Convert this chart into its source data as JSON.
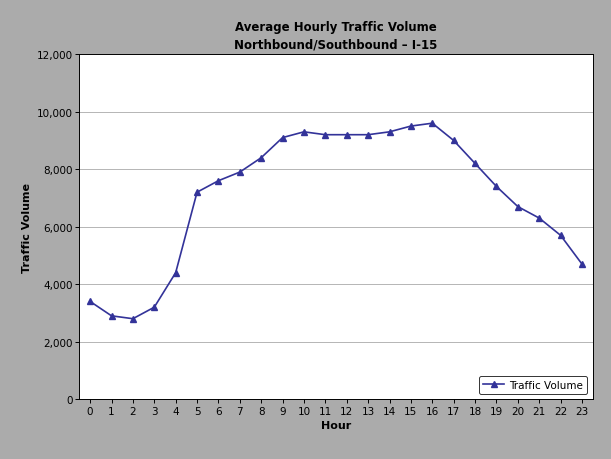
{
  "title_line1": "Average Hourly Traffic Volume",
  "title_line2": "Northbound/Southbound – I-15",
  "xlabel": "Hour",
  "ylabel": "Traffic Volume",
  "legend_label": "Traffic Volume",
  "hours": [
    0,
    1,
    2,
    3,
    4,
    5,
    6,
    7,
    8,
    9,
    10,
    11,
    12,
    13,
    14,
    15,
    16,
    17,
    18,
    19,
    20,
    21,
    22,
    23
  ],
  "values": [
    3400,
    2900,
    2800,
    3200,
    4400,
    7200,
    7600,
    7900,
    8400,
    9100,
    9300,
    9200,
    9200,
    9200,
    9300,
    9500,
    9600,
    9000,
    8200,
    7400,
    6700,
    6300,
    5700,
    4700
  ],
  "ylim": [
    0,
    12000
  ],
  "ytick_step": 2000,
  "line_color": "#333399",
  "marker": "^",
  "marker_size": 4,
  "line_width": 1.2,
  "background_color": "#ABABAB",
  "plot_bg_color": "#FFFFFF",
  "title_fontsize": 8.5,
  "axis_label_fontsize": 8,
  "tick_fontsize": 7.5,
  "legend_fontsize": 7.5,
  "grid_color": "#AAAAAA",
  "grid_linewidth": 0.6
}
